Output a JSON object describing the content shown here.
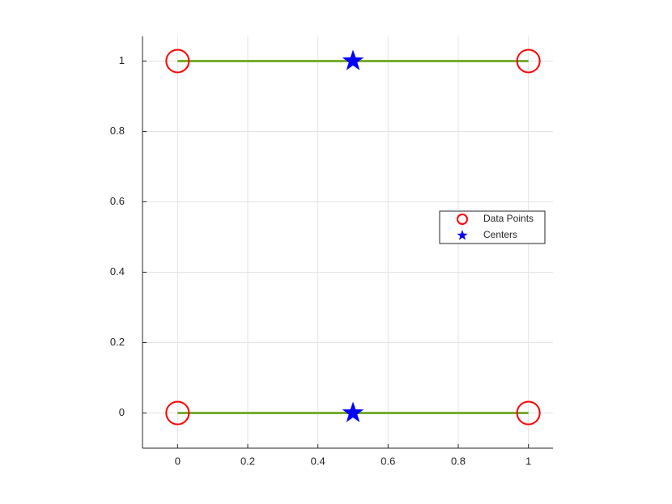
{
  "chart_data": {
    "type": "scatter",
    "xlim": [
      -0.1,
      1.07
    ],
    "ylim": [
      -0.1,
      1.07
    ],
    "xticks": [
      0,
      0.2,
      0.4,
      0.6,
      0.8,
      1
    ],
    "yticks": [
      0,
      0.2,
      0.4,
      0.6,
      0.8,
      1
    ],
    "grid": true,
    "legend": "east",
    "series": [
      {
        "color": "#77ac30",
        "marker": "none",
        "line": true,
        "x": [
          0,
          1,
          null,
          0,
          1
        ],
        "y": [
          0,
          0,
          null,
          1,
          1
        ]
      },
      {
        "name": "Data Points",
        "color": "#ff0000",
        "marker": "circle",
        "x": [
          0,
          1,
          0,
          1
        ],
        "y": [
          0,
          0,
          1,
          1
        ]
      },
      {
        "name": "Centers",
        "color": "#0000ff",
        "marker": "star",
        "x": [
          0.5,
          0.5
        ],
        "y": [
          0,
          1
        ]
      }
    ]
  }
}
